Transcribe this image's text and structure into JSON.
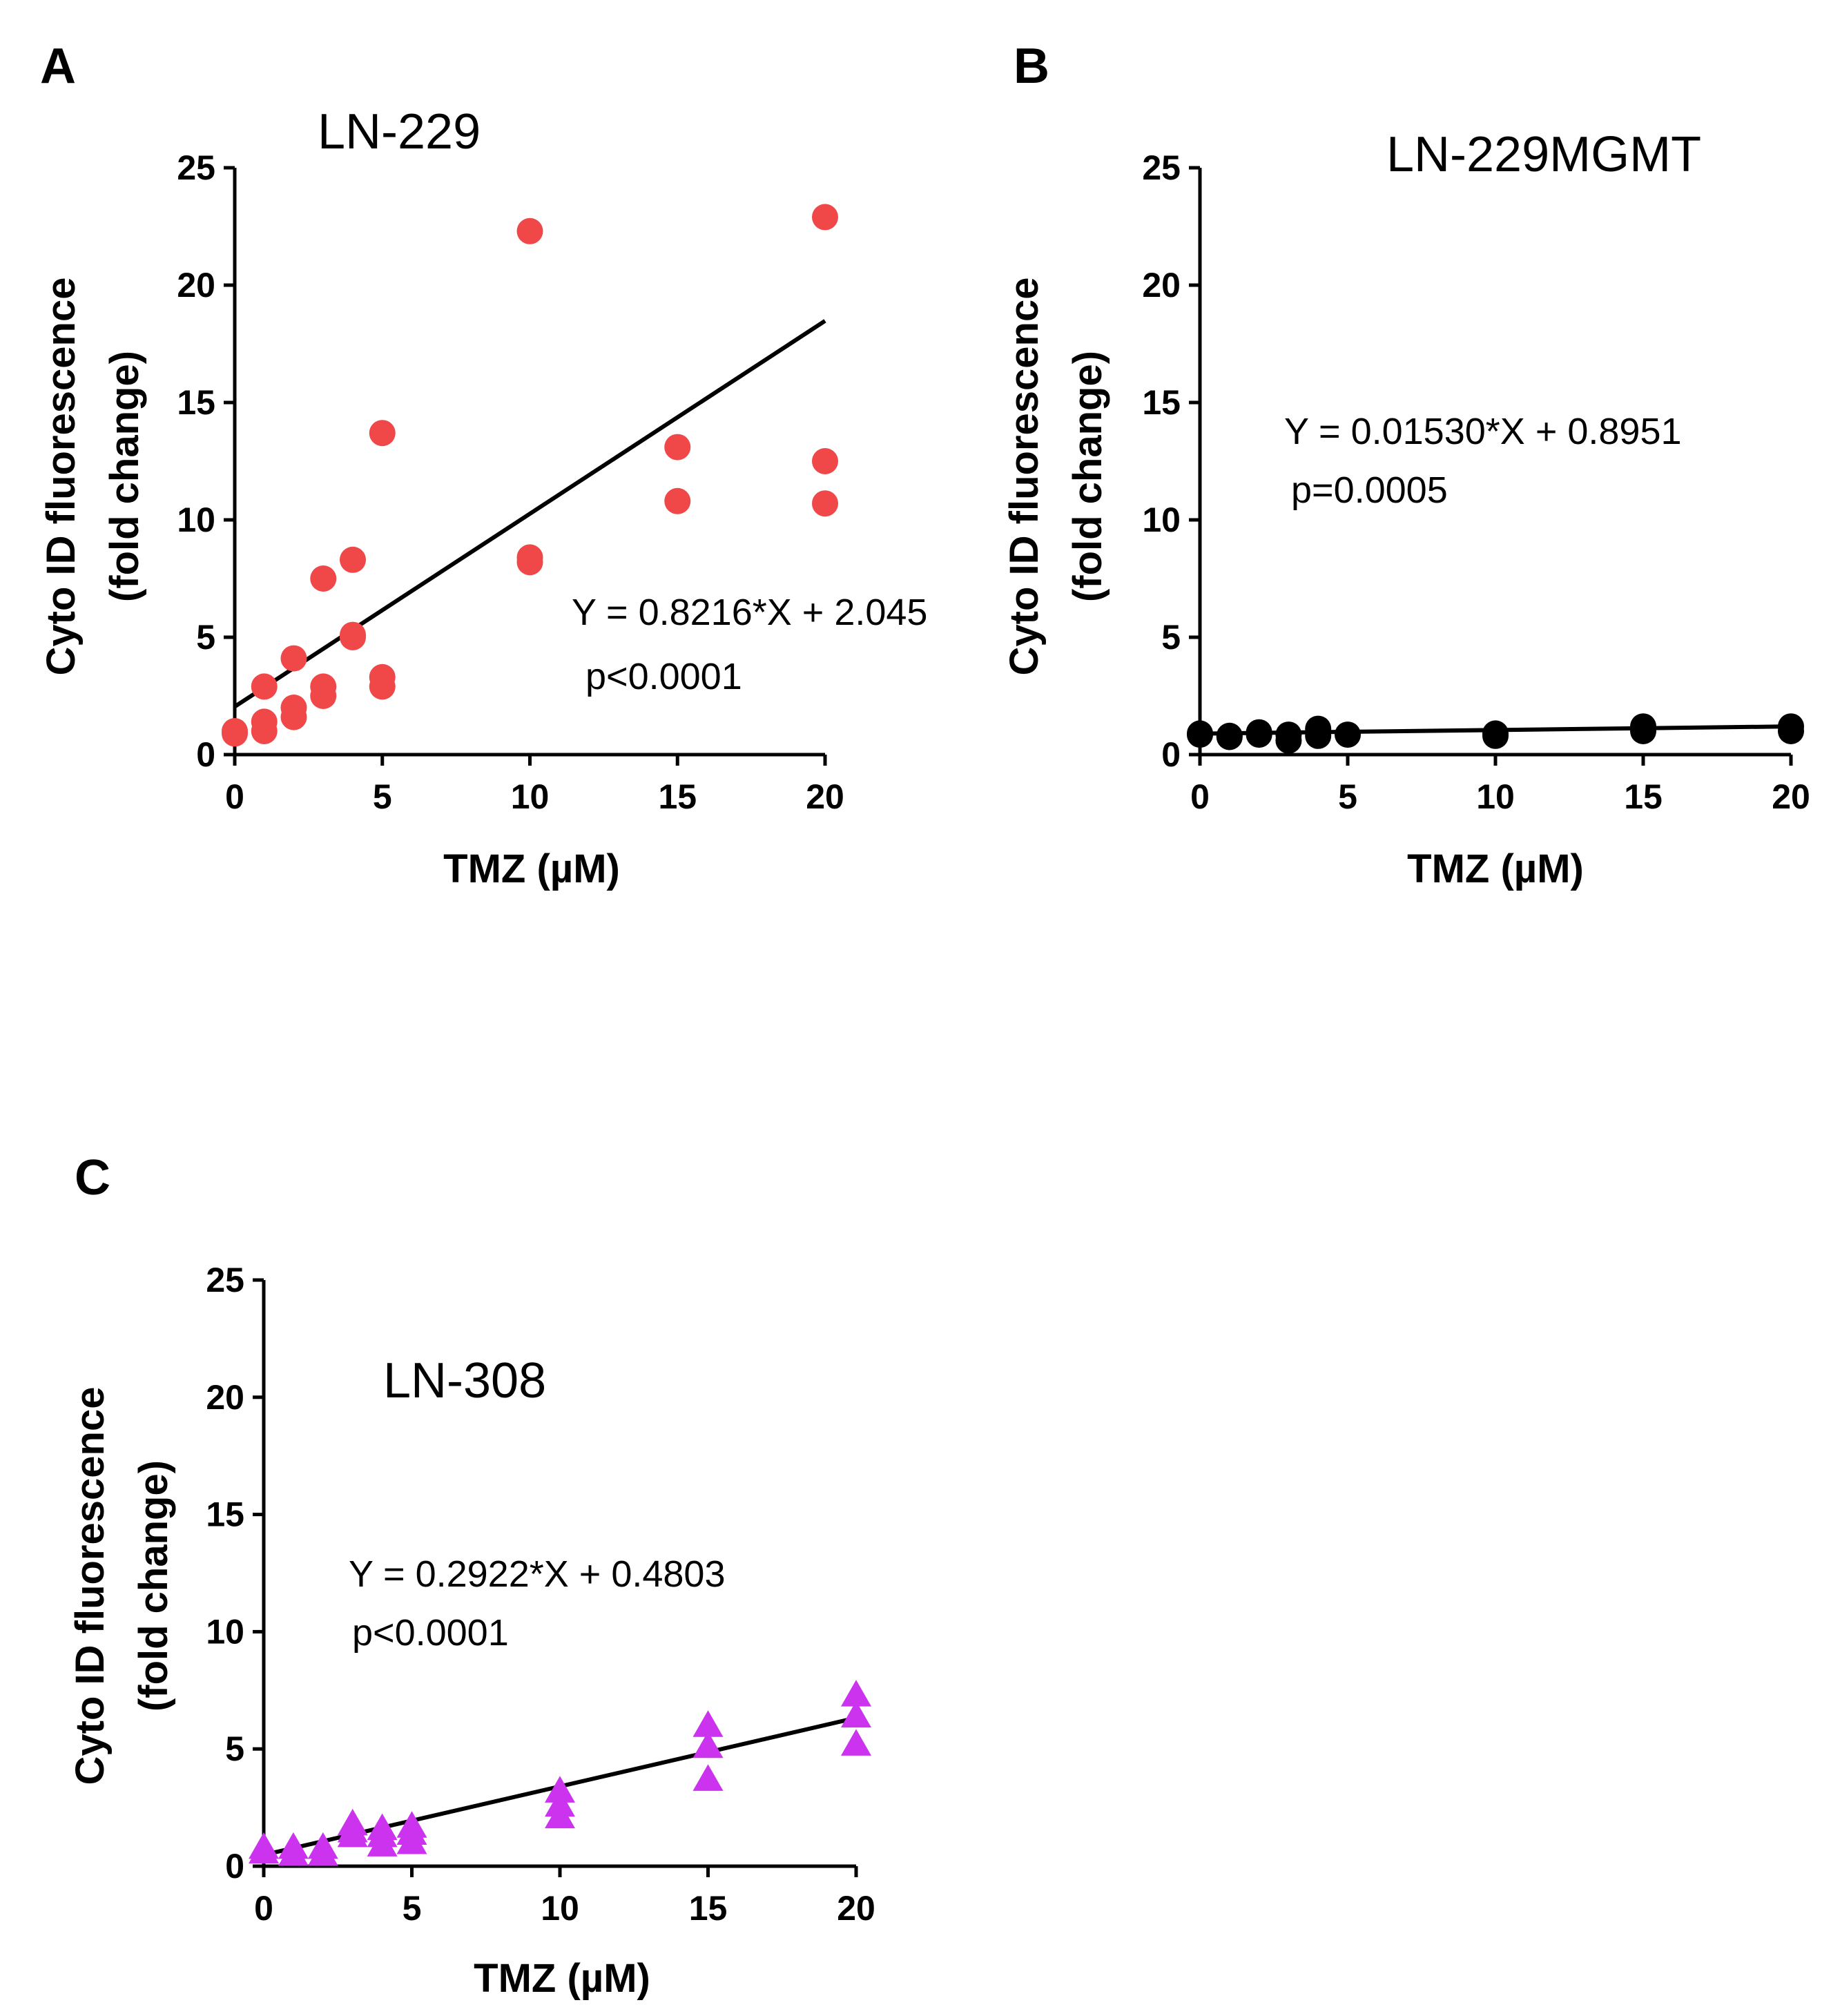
{
  "chart_data": [
    {
      "panel": "A",
      "type": "scatter",
      "title": "LN-229",
      "xlabel": "TMZ (µM)",
      "ylabel_line1": "Cyto ID fluorescence",
      "ylabel_line2": "(fold change)",
      "xlim": [
        0,
        20
      ],
      "ylim": [
        0,
        25
      ],
      "x_ticks": [
        0,
        5,
        10,
        15,
        20
      ],
      "y_ticks": [
        0,
        5,
        10,
        15,
        20,
        25
      ],
      "marker": "circle",
      "color": "#f04848",
      "points": [
        {
          "x": 0,
          "y": 0.9
        },
        {
          "x": 0,
          "y": 1.0
        },
        {
          "x": 1,
          "y": 2.9
        },
        {
          "x": 1,
          "y": 1.4
        },
        {
          "x": 1,
          "y": 1.0
        },
        {
          "x": 2,
          "y": 4.1
        },
        {
          "x": 2,
          "y": 2.0
        },
        {
          "x": 2,
          "y": 1.6
        },
        {
          "x": 3,
          "y": 7.5
        },
        {
          "x": 3,
          "y": 2.9
        },
        {
          "x": 3,
          "y": 2.5
        },
        {
          "x": 4,
          "y": 8.3
        },
        {
          "x": 4,
          "y": 5.1
        },
        {
          "x": 4,
          "y": 5.0
        },
        {
          "x": 5,
          "y": 13.7
        },
        {
          "x": 5,
          "y": 3.3
        },
        {
          "x": 5,
          "y": 2.9
        },
        {
          "x": 10,
          "y": 22.3
        },
        {
          "x": 10,
          "y": 8.4
        },
        {
          "x": 10,
          "y": 8.2
        },
        {
          "x": 15,
          "y": 13.1
        },
        {
          "x": 15,
          "y": 10.8
        },
        {
          "x": 20,
          "y": 22.9
        },
        {
          "x": 20,
          "y": 12.5
        },
        {
          "x": 20,
          "y": 10.7
        }
      ],
      "fit": {
        "slope": 0.8216,
        "intercept": 2.045,
        "x_range": [
          0,
          20
        ]
      },
      "equation": "Y = 0.8216*X + 2.045",
      "pvalue": "p<0.0001"
    },
    {
      "panel": "B",
      "type": "scatter",
      "title": "LN-229MGMT",
      "xlabel": "TMZ (µM)",
      "ylabel_line1": "Cyto ID fluorescence",
      "ylabel_line2": "(fold change)",
      "xlim": [
        0,
        20
      ],
      "ylim": [
        0,
        25
      ],
      "x_ticks": [
        0,
        5,
        10,
        15,
        20
      ],
      "y_ticks": [
        0,
        5,
        10,
        15,
        20,
        25
      ],
      "marker": "circle",
      "color": "#000000",
      "points": [
        {
          "x": 0,
          "y": 0.9
        },
        {
          "x": 0,
          "y": 0.85
        },
        {
          "x": 1,
          "y": 0.8
        },
        {
          "x": 1,
          "y": 0.75
        },
        {
          "x": 2,
          "y": 0.95
        },
        {
          "x": 2,
          "y": 0.85
        },
        {
          "x": 3,
          "y": 0.85
        },
        {
          "x": 3,
          "y": 0.6
        },
        {
          "x": 4,
          "y": 1.1
        },
        {
          "x": 4,
          "y": 0.8
        },
        {
          "x": 5,
          "y": 0.85
        },
        {
          "x": 10,
          "y": 0.9
        },
        {
          "x": 10,
          "y": 0.8
        },
        {
          "x": 15,
          "y": 1.2
        },
        {
          "x": 15,
          "y": 1.0
        },
        {
          "x": 20,
          "y": 1.2
        },
        {
          "x": 20,
          "y": 1.0
        }
      ],
      "fit": {
        "slope": 0.0153,
        "intercept": 0.8951,
        "x_range": [
          0,
          20
        ]
      },
      "equation": "Y = 0.01530*X + 0.8951",
      "pvalue": "p=0.0005"
    },
    {
      "panel": "C",
      "type": "scatter",
      "title": "LN-308",
      "xlabel": "TMZ (µM)",
      "ylabel_line1": "Cyto ID fluorescence",
      "ylabel_line2": "(fold change)",
      "xlim": [
        0,
        20
      ],
      "ylim": [
        0,
        25
      ],
      "x_ticks": [
        0,
        5,
        10,
        15,
        20
      ],
      "y_ticks": [
        0,
        5,
        10,
        15,
        20,
        25
      ],
      "marker": "triangle",
      "color": "#cc33ee",
      "points": [
        {
          "x": 0,
          "y": 0.8
        },
        {
          "x": 0,
          "y": 0.6
        },
        {
          "x": 1,
          "y": 0.8
        },
        {
          "x": 1,
          "y": 0.5
        },
        {
          "x": 2,
          "y": 0.8
        },
        {
          "x": 2,
          "y": 0.5
        },
        {
          "x": 3,
          "y": 1.8
        },
        {
          "x": 3,
          "y": 1.5
        },
        {
          "x": 3,
          "y": 1.3
        },
        {
          "x": 4,
          "y": 1.6
        },
        {
          "x": 4,
          "y": 1.3
        },
        {
          "x": 4,
          "y": 0.9
        },
        {
          "x": 5,
          "y": 1.7
        },
        {
          "x": 5,
          "y": 1.4
        },
        {
          "x": 5,
          "y": 1.0
        },
        {
          "x": 10,
          "y": 3.2
        },
        {
          "x": 10,
          "y": 2.6
        },
        {
          "x": 10,
          "y": 2.1
        },
        {
          "x": 15,
          "y": 6.0
        },
        {
          "x": 15,
          "y": 5.1
        },
        {
          "x": 15,
          "y": 3.7
        },
        {
          "x": 20,
          "y": 7.3
        },
        {
          "x": 20,
          "y": 6.4
        },
        {
          "x": 20,
          "y": 5.2
        }
      ],
      "fit": {
        "slope": 0.2922,
        "intercept": 0.4803,
        "x_range": [
          0,
          20
        ]
      },
      "equation": "Y = 0.2922*X + 0.4803",
      "pvalue": "p<0.0001"
    }
  ]
}
